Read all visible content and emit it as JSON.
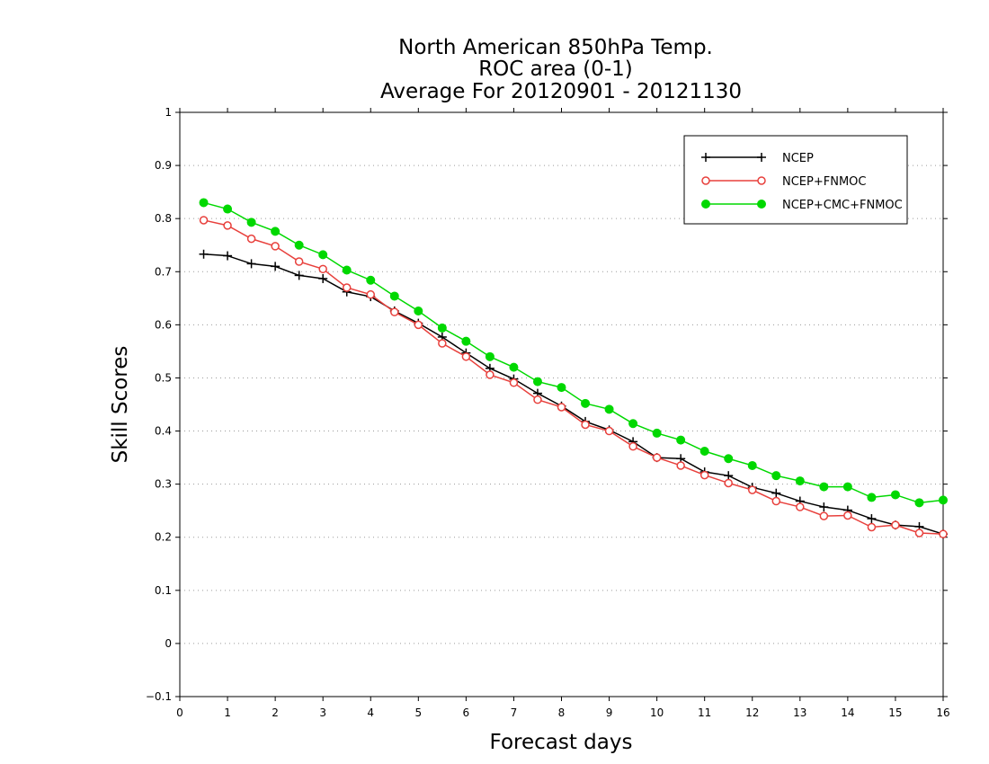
{
  "chart_data": {
    "type": "line",
    "title": [
      "North American 850hPa Temp.",
      "ROC area (0-1)",
      "Average For 20120901 - 20121130"
    ],
    "xlabel": "Forecast days",
    "ylabel": "Skill Scores",
    "xlim": [
      0,
      16
    ],
    "ylim": [
      -0.1,
      1
    ],
    "xticks": [
      0,
      1,
      2,
      3,
      4,
      5,
      6,
      7,
      8,
      9,
      10,
      11,
      12,
      13,
      14,
      15,
      16
    ],
    "xtick_labels": [
      "0",
      "1",
      "2",
      "3",
      "4",
      "5",
      "6",
      "7",
      "8",
      "9",
      "10",
      "11",
      "12",
      "13",
      "14",
      "15",
      "16"
    ],
    "yticks": [
      -0.1,
      0,
      0.1,
      0.2,
      0.3,
      0.4,
      0.5,
      0.6,
      0.7,
      0.8,
      0.9,
      1
    ],
    "ytick_labels": [
      "−0.1",
      "0",
      "0.1",
      "0.2",
      "0.3",
      "0.4",
      "0.5",
      "0.6",
      "0.7",
      "0.8",
      "0.9",
      "1"
    ],
    "grid": "horizontal dotted",
    "legend_position": "top-right",
    "x": [
      0.5,
      1,
      1.5,
      2,
      2.5,
      3,
      3.5,
      4,
      4.5,
      5,
      5.5,
      6,
      6.5,
      7,
      7.5,
      8,
      8.5,
      9,
      9.5,
      10,
      10.5,
      11,
      11.5,
      12,
      12.5,
      13,
      13.5,
      14,
      14.5,
      15,
      15.5,
      16
    ],
    "series": [
      {
        "name": "NCEP",
        "color": "#000000",
        "marker": "plus",
        "values": [
          0.733,
          0.73,
          0.715,
          0.71,
          0.693,
          0.687,
          0.662,
          0.653,
          0.626,
          0.603,
          0.577,
          0.547,
          0.518,
          0.498,
          0.471,
          0.447,
          0.418,
          0.402,
          0.38,
          0.35,
          0.348,
          0.323,
          0.316,
          0.294,
          0.283,
          0.268,
          0.257,
          0.251,
          0.235,
          0.223,
          0.22,
          0.206
        ]
      },
      {
        "name": "NCEP+FNMOC",
        "color": "#e8403c",
        "marker": "open-circle",
        "values": [
          0.797,
          0.787,
          0.762,
          0.748,
          0.719,
          0.705,
          0.67,
          0.657,
          0.624,
          0.6,
          0.565,
          0.54,
          0.506,
          0.491,
          0.459,
          0.445,
          0.412,
          0.4,
          0.371,
          0.35,
          0.335,
          0.317,
          0.302,
          0.289,
          0.268,
          0.257,
          0.24,
          0.241,
          0.219,
          0.223,
          0.208,
          0.206
        ]
      },
      {
        "name": "NCEP+CMC+FNMOC",
        "color": "#00d800",
        "marker": "filled-circle",
        "values": [
          0.83,
          0.818,
          0.793,
          0.776,
          0.75,
          0.732,
          0.703,
          0.684,
          0.654,
          0.626,
          0.594,
          0.569,
          0.54,
          0.52,
          0.493,
          0.482,
          0.452,
          0.441,
          0.414,
          0.396,
          0.383,
          0.362,
          0.348,
          0.335,
          0.316,
          0.306,
          0.295,
          0.295,
          0.275,
          0.28,
          0.265,
          0.27
        ]
      }
    ]
  }
}
